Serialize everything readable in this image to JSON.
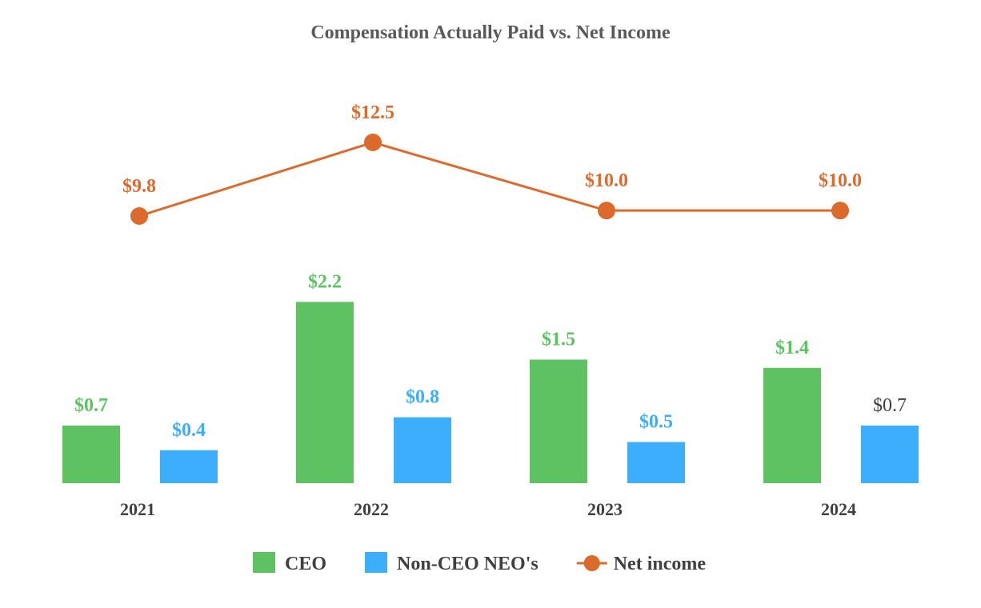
{
  "chart_data": {
    "type": "bar",
    "title": "Compensation Actually Paid vs. Net Income",
    "categories": [
      "2021",
      "2022",
      "2023",
      "2024"
    ],
    "xlabel": "",
    "ylabel": "",
    "grid": false,
    "legend_position": "bottom",
    "series": [
      {
        "name": "CEO",
        "kind": "bar",
        "color": "#5ec262",
        "values": [
          0.7,
          2.2,
          1.5,
          1.4
        ],
        "labels": [
          "$0.7",
          "$2.2",
          "$1.5",
          "$1.4"
        ]
      },
      {
        "name": "Non-CEO NEO's",
        "kind": "bar",
        "color": "#3daefc",
        "values": [
          0.4,
          0.8,
          0.5,
          0.7
        ],
        "labels": [
          "$0.4",
          "$0.8",
          "$0.5",
          "$0.7"
        ]
      },
      {
        "name": "Net income",
        "kind": "line",
        "color": "#dc6a2c",
        "values": [
          9.8,
          12.5,
          10.0,
          10.0
        ],
        "labels": [
          "$9.8",
          "$12.5",
          "$10.0",
          "$10.0"
        ]
      }
    ],
    "legend": [
      "CEO",
      "Non-CEO NEO's",
      "Net income"
    ]
  }
}
